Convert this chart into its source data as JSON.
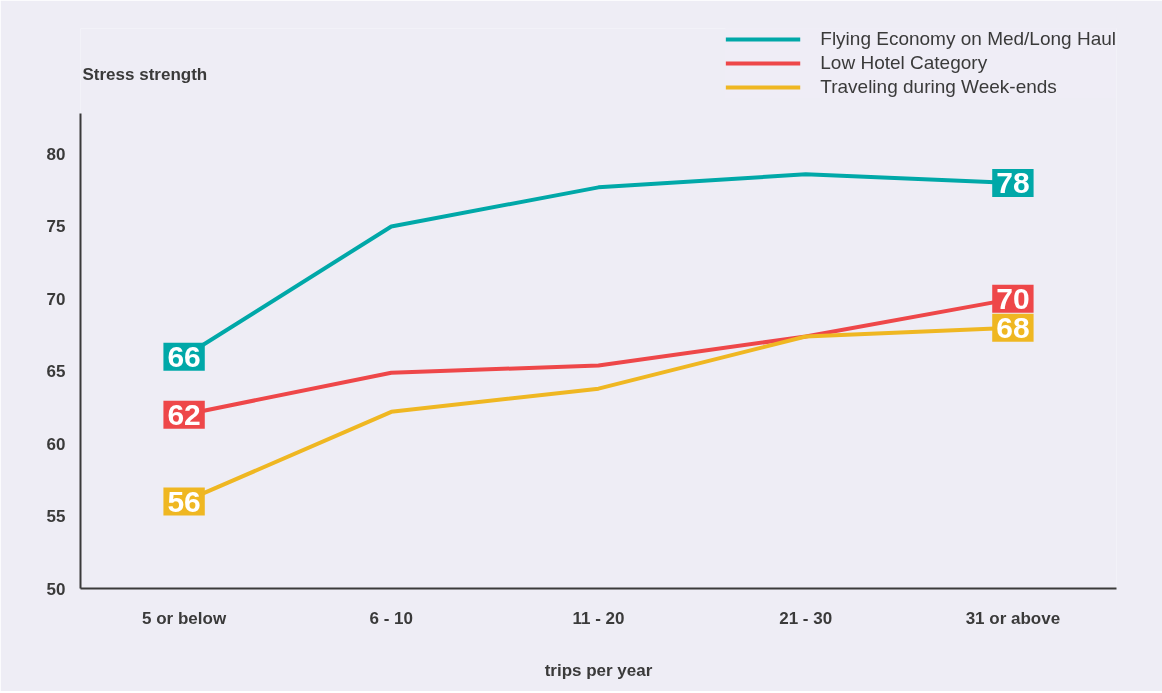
{
  "chart_data": {
    "type": "line",
    "xlabel": "trips per year",
    "ylabel": "Stress strength",
    "categories": [
      "5 or below",
      "6 - 10",
      "11 - 20",
      "21 - 30",
      "31 or above"
    ],
    "series": [
      {
        "name": "Flying Economy on Med/Long Haul",
        "color": "#00a8a8",
        "values": [
          66,
          75.0,
          77.7,
          78.6,
          78
        ],
        "value_labels": [
          "66",
          null,
          null,
          null,
          "78"
        ]
      },
      {
        "name": "Low Hotel Category",
        "color": "#ee4749",
        "values": [
          62,
          64.9,
          65.4,
          67.4,
          70
        ],
        "value_labels": [
          "62",
          null,
          null,
          null,
          "70"
        ]
      },
      {
        "name": "Traveling during Week-ends",
        "color": "#efb722",
        "values": [
          56,
          62.2,
          63.8,
          67.4,
          68
        ],
        "value_labels": [
          "56",
          null,
          null,
          null,
          "68"
        ]
      }
    ],
    "ylim": [
      50,
      82.8
    ],
    "yticks": [
      50,
      55,
      60,
      65,
      70,
      75,
      80
    ],
    "grid": false,
    "legend": "top right",
    "marker": "none",
    "line_style": "solid"
  }
}
